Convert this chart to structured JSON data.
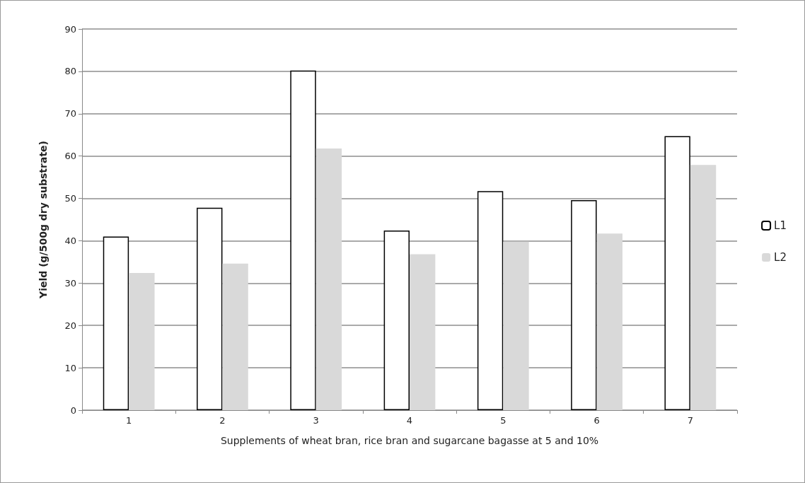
{
  "chart_data": {
    "type": "bar",
    "xlabel": "Supplements of wheat bran, rice bran and sugarcane bagasse at 5 and 10%",
    "ylabel": "Yield (g/500g dry substrate)",
    "categories": [
      "1",
      "2",
      "3",
      "4",
      "5",
      "6",
      "7"
    ],
    "series": [
      {
        "name": "L1",
        "color": "#ffffff",
        "values": [
          41,
          47.8,
          80.2,
          42.4,
          51.7,
          49.6,
          64.7
        ]
      },
      {
        "name": "L2",
        "color": "#d9d9d9",
        "values": [
          32.4,
          34.6,
          61.8,
          36.8,
          39.8,
          41.7,
          57.9
        ]
      }
    ],
    "ylim": [
      0,
      90
    ],
    "yticks": [
      0,
      10,
      20,
      30,
      40,
      50,
      60,
      70,
      80,
      90
    ],
    "grid": "y",
    "legend": "right"
  }
}
